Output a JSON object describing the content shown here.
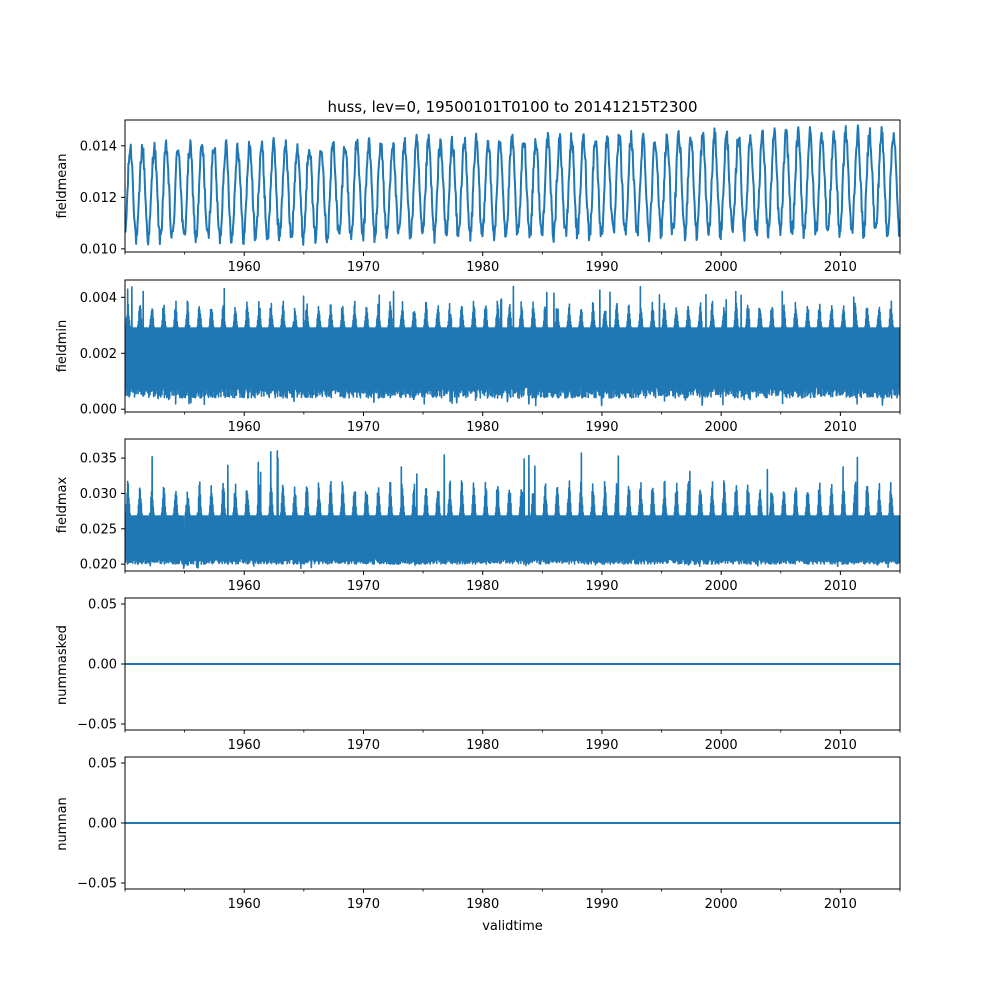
{
  "chart_data": {
    "type": "line",
    "title": "huss, lev=0, 19500101T0100 to 20141215T2300",
    "xlabel": "validtime",
    "xlim": [
      1950.0,
      2015.0
    ],
    "x_ticks": [
      1960,
      1970,
      1980,
      1990,
      2000,
      2010
    ],
    "x_tick_labels": [
      "1960",
      "1970",
      "1980",
      "1990",
      "2000",
      "2010"
    ],
    "x_minor_ticks": [
      1950,
      1955,
      1965,
      1975,
      1985,
      1995,
      2005,
      2015
    ],
    "line_color": "#1f77b4",
    "panels": [
      {
        "ylabel": "fieldmean",
        "ylim": [
          0.00988,
          0.015
        ],
        "y_ticks": [
          0.01,
          0.012,
          0.014
        ],
        "y_tick_labels": [
          "0.010",
          "0.012",
          "0.014"
        ],
        "series": {
          "kind": "seasonal-oscillation",
          "cycles_per_year": 1,
          "base_min": 0.0104,
          "base_max": 0.0139,
          "min_trend_end": 0.0107,
          "max_trend_end": 0.0145,
          "envelope_min": 0.01,
          "envelope_max": 0.0148
        }
      },
      {
        "ylabel": "fieldmin",
        "ylim": [
          -0.0001,
          0.00462
        ],
        "y_ticks": [
          0.0,
          0.002,
          0.004
        ],
        "y_tick_labels": [
          "0.000",
          "0.002",
          "0.004"
        ],
        "series": {
          "kind": "dense-band",
          "band_low": 0.0008,
          "band_high": 0.0029,
          "typical_min": 0.0004,
          "typical_peak": 0.0039,
          "envelope_min": 0.0001,
          "envelope_max": 0.0044
        }
      },
      {
        "ylabel": "fieldmax",
        "ylim": [
          0.01903,
          0.0377
        ],
        "y_ticks": [
          0.02,
          0.025,
          0.03,
          0.035
        ],
        "y_tick_labels": [
          "0.020",
          "0.025",
          "0.030",
          "0.035"
        ],
        "series": {
          "kind": "dense-band",
          "band_low": 0.0208,
          "band_high": 0.0268,
          "typical_min": 0.02,
          "typical_peak": 0.032,
          "envelope_min": 0.0194,
          "envelope_max": 0.0369
        }
      },
      {
        "ylabel": "nummasked",
        "ylim": [
          -0.055,
          0.055
        ],
        "y_ticks": [
          -0.05,
          0.0,
          0.05
        ],
        "y_tick_labels": [
          "−0.05",
          "0.00",
          "0.05"
        ],
        "series": {
          "kind": "constant",
          "value": 0.0
        }
      },
      {
        "ylabel": "numnan",
        "ylim": [
          -0.055,
          0.055
        ],
        "y_ticks": [
          -0.05,
          0.0,
          0.05
        ],
        "y_tick_labels": [
          "−0.05",
          "0.00",
          "0.05"
        ],
        "series": {
          "kind": "constant",
          "value": 0.0
        }
      }
    ]
  }
}
